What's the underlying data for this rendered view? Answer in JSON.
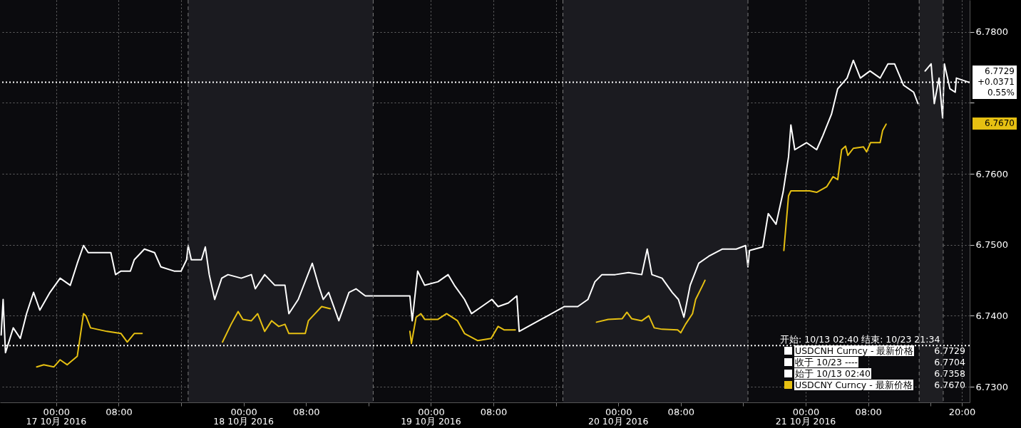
{
  "chart_data": {
    "type": "line",
    "legend": "bottom right",
    "grid": true,
    "line_style": "solid",
    "marker": "none",
    "xlim": [
      "2016-10-16T16:48",
      "2016-10-21T21:00"
    ],
    "ylim": [
      6.7278,
      6.7845
    ],
    "xticks": [
      {
        "value": "2016-10-17T00:00",
        "label": "00:00"
      },
      {
        "value": "2016-10-17T08:00",
        "label": "08:00"
      },
      {
        "value": "2016-10-17T16:00",
        "label": null
      },
      {
        "value": "2016-10-18T00:00",
        "label": "00:00"
      },
      {
        "value": "2016-10-18T08:00",
        "label": "08:00"
      },
      {
        "value": "2016-10-18T16:00",
        "label": null
      },
      {
        "value": "2016-10-19T00:00",
        "label": "00:00"
      },
      {
        "value": "2016-10-19T08:00",
        "label": "08:00"
      },
      {
        "value": "2016-10-19T16:00",
        "label": null
      },
      {
        "value": "2016-10-20T00:00",
        "label": "00:00"
      },
      {
        "value": "2016-10-20T08:00",
        "label": "08:00"
      },
      {
        "value": "2016-10-20T16:00",
        "label": null
      },
      {
        "value": "2016-10-21T00:00",
        "label": "00:00"
      },
      {
        "value": "2016-10-21T08:00",
        "label": "08:00"
      },
      {
        "value": "2016-10-21T16:00",
        "label": null
      },
      {
        "value": "2016-10-21T20:00",
        "label": "20:00"
      }
    ],
    "x2lim": [
      "2016-10-16T16:48",
      "2016-10-21T21:00"
    ],
    "x2ticks": [
      {
        "value": "2016-10-17",
        "label": "17 10月 2016"
      },
      {
        "value": "2016-10-18",
        "label": "18 10月 2016"
      },
      {
        "value": "2016-10-19",
        "label": "19 10月 2016"
      },
      {
        "value": "2016-10-20",
        "label": "20 10月 2016"
      },
      {
        "value": "2016-10-21",
        "label": "21 10月 2016"
      }
    ],
    "yticks": [
      {
        "value": 6.73,
        "label": "6.7300"
      },
      {
        "value": 6.74,
        "label": "6.7400"
      },
      {
        "value": 6.75,
        "label": "6.7500"
      },
      {
        "value": 6.76,
        "label": "6.7600"
      },
      {
        "value": 6.77,
        "label": null
      },
      {
        "value": 6.78,
        "label": "6.7800"
      }
    ],
    "series": [
      {
        "name": "USDCNH Curncy - 最新价格",
        "color": "#ffffff",
        "x": [
          "2016-10-16T16:57",
          "2016-10-16T17:12",
          "2016-10-16T17:30",
          "2016-10-16T18:30",
          "2016-10-16T19:24",
          "2016-10-16T20:12",
          "2016-10-16T21:06",
          "2016-10-16T21:54",
          "2016-10-16T23:12",
          "2016-10-17T00:30",
          "2016-10-17T01:48",
          "2016-10-17T02:42",
          "2016-10-17T03:30",
          "2016-10-17T04:06",
          "2016-10-17T05:42",
          "2016-10-17T07:00",
          "2016-10-17T07:36",
          "2016-10-17T08:18",
          "2016-10-17T09:30",
          "2016-10-17T10:00",
          "2016-10-17T11:18",
          "2016-10-17T12:36",
          "2016-10-17T13:24",
          "2016-10-17T15:06",
          "2016-10-17T16:00",
          "2016-10-17T16:42",
          "2016-10-17T16:54",
          "2016-10-17T17:18",
          "2016-10-17T18:36",
          "2016-10-17T19:06",
          "2016-10-17T19:36",
          "2016-10-17T20:18",
          "2016-10-17T21:12",
          "2016-10-17T22:00",
          "2016-10-17T23:42",
          "2016-10-18T01:00",
          "2016-10-18T01:30",
          "2016-10-18T02:42",
          "2016-10-18T04:00",
          "2016-10-18T05:18",
          "2016-10-18T05:48",
          "2016-10-18T07:00",
          "2016-10-18T08:48",
          "2016-10-18T09:36",
          "2016-10-18T10:12",
          "2016-10-18T10:54",
          "2016-10-18T12:12",
          "2016-10-18T13:30",
          "2016-10-18T14:24",
          "2016-10-18T15:36",
          "2016-10-18T21:18",
          "2016-10-18T21:36",
          "2016-10-18T22:18",
          "2016-10-18T23:12",
          "2016-10-19T00:54",
          "2016-10-19T02:12",
          "2016-10-19T03:00",
          "2016-10-19T04:18",
          "2016-10-19T05:12",
          "2016-10-19T06:30",
          "2016-10-19T07:48",
          "2016-10-19T08:36",
          "2016-10-19T09:54",
          "2016-10-19T11:00",
          "2016-10-19T11:18",
          "2016-10-19T17:06",
          "2016-10-19T18:48",
          "2016-10-19T20:06",
          "2016-10-19T21:00",
          "2016-10-19T21:54",
          "2016-10-19T23:36",
          "2016-10-20T01:18",
          "2016-10-20T03:00",
          "2016-10-20T03:42",
          "2016-10-20T04:18",
          "2016-10-20T05:36",
          "2016-10-20T06:54",
          "2016-10-20T07:42",
          "2016-10-20T08:24",
          "2016-10-20T09:12",
          "2016-10-20T10:18",
          "2016-10-20T11:36",
          "2016-10-20T13:18",
          "2016-10-20T15:06",
          "2016-10-20T16:18",
          "2016-10-20T16:36",
          "2016-10-20T16:48",
          "2016-10-20T18:30",
          "2016-10-20T19:12",
          "2016-10-20T20:12",
          "2016-10-20T21:06",
          "2016-10-20T21:48",
          "2016-10-20T22:06",
          "2016-10-20T22:36",
          "2016-10-21T00:06",
          "2016-10-21T01:24",
          "2016-10-21T02:12",
          "2016-10-21T03:18",
          "2016-10-21T04:06",
          "2016-10-21T05:18",
          "2016-10-21T06:06",
          "2016-10-21T07:00",
          "2016-10-21T08:14",
          "2016-10-21T09:32",
          "2016-10-21T10:32",
          "2016-10-21T11:23",
          "2016-10-21T12:32",
          "2016-10-21T13:50",
          "2016-10-21T14:23",
          "2016-10-21T14:50",
          "2016-10-21T15:18",
          "2016-10-21T16:04",
          "2016-10-21T16:28",
          "2016-10-21T17:05",
          "2016-10-21T17:32",
          "2016-10-21T17:46",
          "2016-10-21T18:28",
          "2016-10-21T19:09",
          "2016-10-21T19:18",
          "2016-10-21T20:55"
        ],
        "values": [
          6.7373,
          6.7423,
          6.7348,
          6.7383,
          6.7368,
          6.7403,
          6.7433,
          6.7408,
          6.7433,
          6.7453,
          6.7443,
          6.7474,
          6.7499,
          6.7489,
          6.7489,
          6.7489,
          6.7458,
          6.7463,
          6.7463,
          6.7479,
          6.7494,
          6.7489,
          6.7469,
          6.7463,
          6.7463,
          6.7479,
          6.7499,
          6.7479,
          6.7479,
          6.7497,
          6.7458,
          6.7423,
          6.7453,
          6.7458,
          6.7453,
          6.7458,
          6.7438,
          6.7458,
          6.7443,
          6.7443,
          6.7403,
          6.7423,
          6.7474,
          6.7443,
          6.7423,
          6.7433,
          6.7393,
          6.7433,
          6.7438,
          6.7428,
          6.7428,
          6.7393,
          6.7463,
          6.7443,
          6.7448,
          6.7458,
          6.7443,
          6.7423,
          6.7403,
          6.7413,
          6.7423,
          6.7413,
          6.7418,
          6.7428,
          6.7378,
          6.7413,
          6.7413,
          6.7423,
          6.7448,
          6.7458,
          6.7458,
          6.7461,
          6.7458,
          6.7494,
          6.7458,
          6.7453,
          6.7433,
          6.7423,
          6.7398,
          6.7443,
          6.7474,
          6.7484,
          6.7494,
          6.7494,
          6.7499,
          6.7469,
          6.7492,
          6.7497,
          6.7544,
          6.7529,
          6.7574,
          6.7624,
          6.7669,
          6.7634,
          6.7644,
          6.7634,
          6.7654,
          6.7684,
          6.772,
          6.7735,
          6.776,
          6.7735,
          6.7745,
          6.7735,
          6.7755,
          6.7755,
          6.7725,
          6.7715,
          6.7699,
          null,
          6.7745,
          6.7755,
          6.7699,
          6.7735,
          6.7679,
          6.7755,
          6.772,
          6.7715,
          6.7735,
          6.7729
        ]
      },
      {
        "name": "USDCNY Curncy - 最新价格",
        "color": "#e6c012",
        "x": [
          "2016-10-16T21:30",
          "2016-10-16T22:24",
          "2016-10-16T23:42",
          "2016-10-17T00:30",
          "2016-10-17T01:24",
          "2016-10-17T02:42",
          "2016-10-17T03:30",
          "2016-10-17T03:48",
          "2016-10-17T04:24",
          "2016-10-17T06:30",
          "2016-10-17T08:18",
          "2016-10-17T09:06",
          "2016-10-17T10:00",
          "2016-10-17T11:00",
          "2016-10-17T16:00",
          "2016-10-17T21:18",
          "2016-10-17T22:24",
          "2016-10-17T23:18",
          "2016-10-17T23:54",
          "2016-10-18T01:00",
          "2016-10-18T01:48",
          "2016-10-18T02:42",
          "2016-10-18T03:36",
          "2016-10-18T04:30",
          "2016-10-18T05:18",
          "2016-10-18T05:48",
          "2016-10-18T07:54",
          "2016-10-18T08:18",
          "2016-10-18T10:00",
          "2016-10-18T11:06",
          "2016-10-18T14:00",
          "2016-10-18T21:18",
          "2016-10-18T21:30",
          "2016-10-18T22:06",
          "2016-10-18T22:42",
          "2016-10-18T23:12",
          "2016-10-19T00:54",
          "2016-10-19T02:00",
          "2016-10-19T03:24",
          "2016-10-19T04:18",
          "2016-10-19T06:00",
          "2016-10-19T07:42",
          "2016-10-19T08:36",
          "2016-10-19T09:24",
          "2016-10-19T10:48",
          "2016-10-19T19:00",
          "2016-10-19T21:12",
          "2016-10-19T22:42",
          "2016-10-20T00:30",
          "2016-10-20T01:06",
          "2016-10-20T01:42",
          "2016-10-20T03:00",
          "2016-10-20T03:54",
          "2016-10-20T04:36",
          "2016-10-20T05:36",
          "2016-10-20T07:36",
          "2016-10-20T08:00",
          "2016-10-20T08:36",
          "2016-10-20T09:30",
          "2016-10-20T09:54",
          "2016-10-20T10:48",
          "2016-10-20T11:06",
          "2016-10-20T18:00",
          "2016-10-20T21:12",
          "2016-10-20T21:48",
          "2016-10-20T22:06",
          "2016-10-20T22:48",
          "2016-10-21T00:30",
          "2016-10-21T01:24",
          "2016-10-21T02:42",
          "2016-10-21T03:30",
          "2016-10-21T04:06",
          "2016-10-21T04:36",
          "2016-10-21T05:06",
          "2016-10-21T05:24",
          "2016-10-21T06:06",
          "2016-10-21T07:24",
          "2016-10-21T07:48",
          "2016-10-21T08:18",
          "2016-10-21T09:32",
          "2016-10-21T09:51",
          "2016-10-21T10:18"
        ],
        "values": [
          6.7328,
          6.7331,
          6.7328,
          6.7338,
          6.7331,
          6.7343,
          6.7403,
          6.74,
          6.7383,
          6.7378,
          6.7375,
          6.7363,
          6.7375,
          6.7375,
          null,
          6.7363,
          6.7388,
          6.7406,
          6.7395,
          6.7393,
          6.7403,
          6.7378,
          6.7393,
          6.7385,
          6.7388,
          6.7375,
          6.7375,
          6.7393,
          6.7413,
          6.741,
          null,
          6.7378,
          6.7361,
          6.7398,
          6.7403,
          6.7395,
          6.7395,
          6.7403,
          6.7393,
          6.7375,
          6.7365,
          6.7368,
          6.7385,
          6.738,
          6.738,
          null,
          6.7391,
          6.7395,
          6.7396,
          6.7405,
          6.7396,
          6.7393,
          6.74,
          6.7383,
          6.7381,
          6.738,
          6.7376,
          6.7388,
          6.7403,
          6.7423,
          6.7443,
          6.745,
          null,
          6.7492,
          6.7569,
          6.7576,
          6.7576,
          6.7576,
          6.7574,
          6.7582,
          6.7596,
          6.7592,
          6.7634,
          6.7639,
          6.7626,
          6.7636,
          6.7638,
          6.7631,
          6.7644,
          6.7644,
          6.7661,
          6.767
        ]
      }
    ],
    "ref_lines": [
      {
        "axis": "y",
        "value": 6.7729,
        "color": "#ffffff",
        "line_style": "dotted"
      },
      {
        "axis": "y",
        "value": 6.7358,
        "color": "#ffffff",
        "line_style": "dotted"
      },
      {
        "axis": "x",
        "value": "2016-10-17T16:54",
        "color": "#7a7a7a",
        "line_style": "dashed"
      },
      {
        "axis": "x",
        "value": "2016-10-18T16:36",
        "color": "#7a7a7a",
        "line_style": "dashed"
      },
      {
        "axis": "x",
        "value": "2016-10-19T16:54",
        "color": "#7a7a7a",
        "line_style": "dashed"
      },
      {
        "axis": "x",
        "value": "2016-10-20T16:36",
        "color": "#7a7a7a",
        "line_style": "dashed"
      },
      {
        "axis": "x",
        "value": "2016-10-21T14:32",
        "color": "#7a7a7a",
        "line_style": "dashed"
      },
      {
        "axis": "x",
        "value": "2016-10-21T17:37",
        "color": "#7a7a7a",
        "line_style": "dashed"
      }
    ],
    "bands": [
      {
        "axis": "x",
        "from": "2016-10-17T16:54",
        "to": "2016-10-18T16:36",
        "color": "#1b1b20"
      },
      {
        "axis": "x",
        "from": "2016-10-19T16:54",
        "to": "2016-10-20T16:36",
        "color": "#1b1b20"
      },
      {
        "axis": "x",
        "from": "2016-10-21T14:32",
        "to": "2016-10-21T17:37",
        "color": "#1e1e22"
      }
    ],
    "annotations": [
      "6.7729",
      "+0.0371",
      "0.55%",
      "6.7670",
      "开始: 10/13 02:40 结束: 10/23 21:34",
      "6.7729",
      "收于 10/23 ----",
      "6.7704",
      "始于 10/13 02:40",
      "6.7358",
      "6.7670"
    ]
  }
}
